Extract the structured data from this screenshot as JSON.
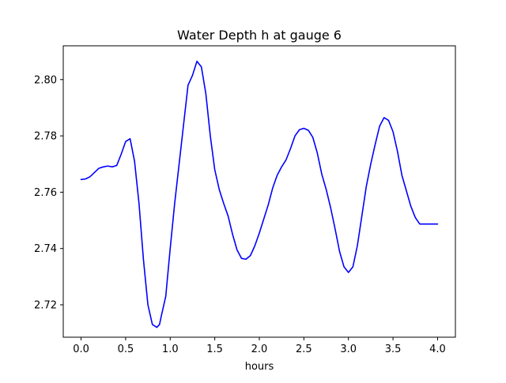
{
  "chart_data": {
    "type": "line",
    "title": "Water Depth h at gauge 6",
    "xlabel": "hours",
    "ylabel": "",
    "xlim": [
      -0.2,
      4.2
    ],
    "ylim": [
      2.7085,
      2.812
    ],
    "xticks": [
      {
        "value": 0.0,
        "label": "0.0"
      },
      {
        "value": 0.5,
        "label": "0.5"
      },
      {
        "value": 1.0,
        "label": "1.0"
      },
      {
        "value": 1.5,
        "label": "1.5"
      },
      {
        "value": 2.0,
        "label": "2.0"
      },
      {
        "value": 2.5,
        "label": "2.5"
      },
      {
        "value": 3.0,
        "label": "3.0"
      },
      {
        "value": 3.5,
        "label": "3.5"
      },
      {
        "value": 4.0,
        "label": "4.0"
      }
    ],
    "yticks": [
      {
        "value": 2.72,
        "label": "2.72"
      },
      {
        "value": 2.74,
        "label": "2.74"
      },
      {
        "value": 2.76,
        "label": "2.76"
      },
      {
        "value": 2.78,
        "label": "2.78"
      },
      {
        "value": 2.8,
        "label": "2.80"
      }
    ],
    "grid": false,
    "series": [
      {
        "color": "#0000ff",
        "x": [
          0.0,
          0.05,
          0.1,
          0.15,
          0.2,
          0.25,
          0.3,
          0.35,
          0.4,
          0.45,
          0.5,
          0.55,
          0.6,
          0.65,
          0.7,
          0.75,
          0.8,
          0.85,
          0.88,
          0.9,
          0.95,
          1.0,
          1.05,
          1.1,
          1.15,
          1.2,
          1.25,
          1.3,
          1.35,
          1.4,
          1.45,
          1.5,
          1.55,
          1.6,
          1.65,
          1.7,
          1.75,
          1.8,
          1.85,
          1.9,
          1.95,
          2.0,
          2.05,
          2.1,
          2.15,
          2.2,
          2.25,
          2.3,
          2.35,
          2.4,
          2.45,
          2.5,
          2.55,
          2.6,
          2.65,
          2.7,
          2.75,
          2.8,
          2.85,
          2.9,
          2.95,
          3.0,
          3.05,
          3.1,
          3.15,
          3.2,
          3.25,
          3.3,
          3.35,
          3.4,
          3.45,
          3.5,
          3.55,
          3.6,
          3.65,
          3.7,
          3.75,
          3.8,
          3.85,
          3.9,
          3.95,
          4.0
        ],
        "y": [
          2.7645,
          2.7647,
          2.7655,
          2.767,
          2.7685,
          2.769,
          2.7693,
          2.769,
          2.7695,
          2.7735,
          2.778,
          2.779,
          2.771,
          2.756,
          2.736,
          2.72,
          2.713,
          2.712,
          2.713,
          2.716,
          2.723,
          2.74,
          2.756,
          2.77,
          2.784,
          2.798,
          2.8015,
          2.8065,
          2.8045,
          2.795,
          2.78,
          2.768,
          2.761,
          2.756,
          2.7515,
          2.745,
          2.7395,
          2.7365,
          2.7362,
          2.7375,
          2.741,
          2.7455,
          2.7505,
          2.7555,
          2.7615,
          2.766,
          2.769,
          2.7715,
          2.7755,
          2.78,
          2.7822,
          2.7827,
          2.782,
          2.7795,
          2.774,
          2.7665,
          2.761,
          2.7545,
          2.747,
          2.739,
          2.7335,
          2.7315,
          2.7335,
          2.741,
          2.7515,
          2.762,
          2.77,
          2.777,
          2.7835,
          2.7865,
          2.7855,
          2.7815,
          2.7745,
          2.766,
          2.7605,
          2.755,
          2.751,
          2.7487,
          2.7487,
          2.7487,
          2.7487,
          2.7487
        ]
      }
    ]
  }
}
